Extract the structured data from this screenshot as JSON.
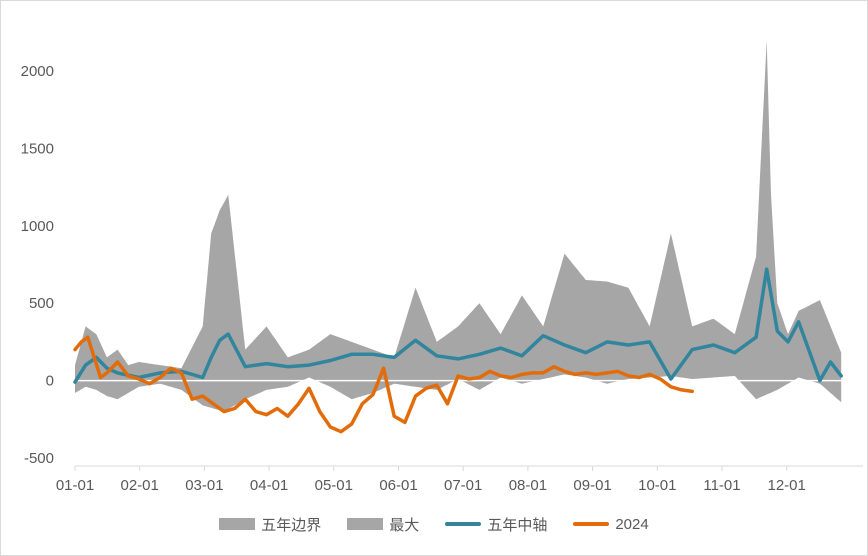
{
  "chart_data": {
    "type": "area",
    "title": "",
    "xlabel": "",
    "ylabel": "",
    "ylim": [
      -500,
      2200
    ],
    "yticks": [
      -500,
      0,
      500,
      1000,
      1500,
      2000
    ],
    "xtick_labels": [
      "01-01",
      "02-01",
      "03-01",
      "04-01",
      "05-01",
      "06-01",
      "07-01",
      "08-01",
      "09-01",
      "10-01",
      "11-01",
      "12-01"
    ],
    "legend_position": "bottom",
    "grid": false,
    "colors": {
      "band": "#a6a6a6",
      "max": "#a6a6a6",
      "median": "#31859c",
      "current": "#e36c0a",
      "axis": "#d9d9d9",
      "zero_line": "#ffffff"
    },
    "series": [
      {
        "name": "五年边界",
        "kind": "area-min",
        "x": [
          0,
          5,
          10,
          15,
          20,
          25,
          30,
          40,
          50,
          60,
          70,
          80,
          90,
          100,
          110,
          120,
          130,
          140,
          150,
          160,
          170,
          180,
          190,
          200,
          210,
          220,
          230,
          240,
          250,
          260,
          270,
          280,
          290,
          300,
          310,
          320,
          330,
          340,
          350,
          360
        ],
        "values": [
          -80,
          -40,
          -60,
          -100,
          -120,
          -80,
          -40,
          -20,
          -60,
          -160,
          -200,
          -120,
          -60,
          -40,
          20,
          -40,
          -120,
          -80,
          -20,
          -40,
          -60,
          10,
          -60,
          20,
          -20,
          10,
          40,
          20,
          -20,
          10,
          20,
          30,
          10,
          20,
          30,
          -120,
          -60,
          20,
          -20,
          -140
        ]
      },
      {
        "name": "最大",
        "kind": "area-max",
        "x": [
          0,
          5,
          10,
          15,
          20,
          25,
          30,
          40,
          50,
          60,
          64,
          68,
          72,
          80,
          90,
          100,
          110,
          120,
          130,
          140,
          150,
          160,
          170,
          180,
          190,
          200,
          210,
          220,
          230,
          240,
          250,
          260,
          270,
          280,
          290,
          300,
          310,
          320,
          325,
          327,
          330,
          335,
          340,
          350,
          360
        ],
        "values": [
          100,
          350,
          300,
          150,
          200,
          100,
          120,
          100,
          80,
          350,
          950,
          1100,
          1200,
          200,
          350,
          150,
          200,
          300,
          250,
          200,
          150,
          600,
          250,
          350,
          500,
          300,
          550,
          350,
          820,
          650,
          640,
          600,
          350,
          950,
          350,
          400,
          300,
          800,
          2200,
          1200,
          500,
          300,
          450,
          520,
          180
        ]
      },
      {
        "name": "五年中轴",
        "kind": "line",
        "x": [
          0,
          5,
          10,
          15,
          20,
          30,
          40,
          50,
          60,
          64,
          68,
          72,
          80,
          90,
          100,
          110,
          120,
          130,
          140,
          150,
          160,
          170,
          180,
          190,
          200,
          210,
          220,
          230,
          240,
          250,
          260,
          270,
          280,
          290,
          300,
          310,
          320,
          325,
          330,
          335,
          340,
          350,
          355,
          360
        ],
        "values": [
          -10,
          100,
          150,
          80,
          50,
          20,
          50,
          60,
          20,
          150,
          260,
          300,
          90,
          110,
          90,
          100,
          130,
          170,
          170,
          150,
          260,
          160,
          140,
          170,
          210,
          160,
          290,
          230,
          180,
          250,
          230,
          250,
          10,
          200,
          230,
          180,
          280,
          720,
          320,
          250,
          380,
          0,
          120,
          30
        ]
      },
      {
        "name": "2024",
        "kind": "line",
        "x": [
          0,
          3,
          6,
          9,
          12,
          15,
          20,
          25,
          30,
          35,
          40,
          45,
          50,
          55,
          60,
          65,
          70,
          75,
          80,
          85,
          90,
          95,
          100,
          105,
          110,
          115,
          120,
          125,
          130,
          135,
          140,
          145,
          150,
          155,
          160,
          165,
          170,
          175,
          180,
          185,
          190,
          195,
          200,
          205,
          210,
          215,
          220,
          225,
          230,
          235,
          240,
          245,
          250,
          255,
          260,
          265,
          270,
          275,
          280,
          285,
          290
        ],
        "values": [
          200,
          250,
          280,
          150,
          20,
          50,
          120,
          30,
          10,
          -20,
          20,
          80,
          50,
          -120,
          -100,
          -150,
          -200,
          -180,
          -120,
          -200,
          -220,
          -180,
          -230,
          -150,
          -50,
          -200,
          -300,
          -330,
          -280,
          -150,
          -90,
          80,
          -230,
          -270,
          -100,
          -50,
          -30,
          -150,
          30,
          10,
          20,
          60,
          30,
          20,
          40,
          50,
          50,
          90,
          60,
          40,
          50,
          40,
          50,
          60,
          30,
          20,
          40,
          10,
          -40,
          -60,
          -70
        ]
      }
    ]
  }
}
